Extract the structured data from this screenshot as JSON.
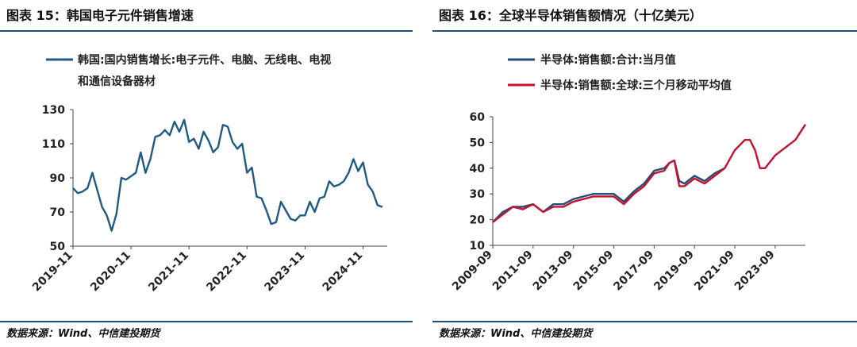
{
  "left": {
    "title": "图表 15：韩国电子元件销售增速",
    "source": "数据来源：Wind、中信建投期货",
    "chart_data": {
      "type": "line",
      "title": "",
      "ylim": [
        50,
        130
      ],
      "yticks": [
        50,
        70,
        90,
        110,
        130
      ],
      "xticks": [
        "2019-11",
        "2020-11",
        "2021-11",
        "2022-11",
        "2023-11",
        "2024-11"
      ],
      "xrange": [
        "2019-11",
        "2025-04"
      ],
      "grid": false,
      "legend_position": "top",
      "series": [
        {
          "name_lines": [
            "韩国:国内销售增长:电子元件、电脑、无线电、电视",
            "和通信设备器材"
          ],
          "color": "#1f5a82",
          "x": [
            "2019-11",
            "2019-12",
            "2020-01",
            "2020-02",
            "2020-03",
            "2020-04",
            "2020-05",
            "2020-06",
            "2020-07",
            "2020-08",
            "2020-09",
            "2020-10",
            "2020-11",
            "2020-12",
            "2021-01",
            "2021-02",
            "2021-03",
            "2021-04",
            "2021-05",
            "2021-06",
            "2021-07",
            "2021-08",
            "2021-09",
            "2021-10",
            "2021-11",
            "2021-12",
            "2022-01",
            "2022-02",
            "2022-03",
            "2022-04",
            "2022-05",
            "2022-06",
            "2022-07",
            "2022-08",
            "2022-09",
            "2022-10",
            "2022-11",
            "2022-12",
            "2023-01",
            "2023-02",
            "2023-03",
            "2023-04",
            "2023-05",
            "2023-06",
            "2023-07",
            "2023-08",
            "2023-09",
            "2023-10",
            "2023-11",
            "2023-12",
            "2024-01",
            "2024-02",
            "2024-03",
            "2024-04",
            "2024-05",
            "2024-06",
            "2024-07",
            "2024-08",
            "2024-09",
            "2024-10",
            "2024-11",
            "2024-12",
            "2025-01",
            "2025-02",
            "2025-03"
          ],
          "values": [
            84,
            81,
            82,
            84,
            93,
            83,
            73,
            68,
            59,
            69,
            90,
            89,
            91,
            93,
            105,
            93,
            101,
            114,
            115,
            118,
            115,
            123,
            117,
            124,
            111,
            113,
            107,
            117,
            112,
            105,
            108,
            121,
            120,
            111,
            107,
            110,
            93,
            96,
            79,
            78,
            71,
            63,
            64,
            76,
            71,
            66,
            65,
            68,
            68,
            76,
            70,
            78,
            79,
            88,
            85,
            86,
            88,
            93,
            101,
            94,
            99,
            86,
            82,
            74,
            73
          ]
        }
      ]
    }
  },
  "right": {
    "title": "图表 16：全球半导体销售额情况（十亿美元）",
    "source": "数据来源：Wind、中信建投期货",
    "chart_data": {
      "type": "line",
      "title": "",
      "ylim": [
        10,
        60
      ],
      "yticks": [
        10,
        20,
        30,
        40,
        50,
        60
      ],
      "xticks": [
        "2009-09",
        "2011-09",
        "2013-09",
        "2015-09",
        "2017-09",
        "2019-09",
        "2021-09",
        "2023-09"
      ],
      "xrange": [
        "2009-09",
        "2025-03"
      ],
      "grid": false,
      "legend_position": "top",
      "series": [
        {
          "name": "半导体:销售额:合计:当月值",
          "color": "#1f4e79",
          "x": [
            "2009-09",
            "2010-03",
            "2010-09",
            "2011-03",
            "2011-09",
            "2012-03",
            "2012-09",
            "2013-03",
            "2013-09",
            "2014-03",
            "2014-09",
            "2015-03",
            "2015-09",
            "2016-03",
            "2016-09",
            "2017-03",
            "2017-09",
            "2018-03",
            "2018-06",
            "2018-09",
            "2018-12",
            "2019-03",
            "2019-09",
            "2020-03",
            "2020-09",
            "2021-03"
          ],
          "values": [
            19,
            23,
            25,
            25,
            26,
            23,
            26,
            26,
            28,
            29,
            30,
            30,
            30,
            27,
            31,
            34,
            39,
            40,
            42,
            43,
            35,
            34,
            37,
            35,
            38,
            40
          ]
        },
        {
          "name": "半导体:销售额:全球:三个月移动平均值",
          "color": "#c8102e",
          "x": [
            "2009-09",
            "2010-03",
            "2010-09",
            "2011-03",
            "2011-09",
            "2012-03",
            "2012-09",
            "2013-03",
            "2013-09",
            "2014-03",
            "2014-09",
            "2015-03",
            "2015-09",
            "2016-03",
            "2016-09",
            "2017-03",
            "2017-09",
            "2018-03",
            "2018-06",
            "2018-09",
            "2018-12",
            "2019-03",
            "2019-09",
            "2020-03",
            "2020-09",
            "2021-03",
            "2021-09",
            "2022-03",
            "2022-06",
            "2022-09",
            "2022-12",
            "2023-03",
            "2023-09",
            "2024-03",
            "2024-09",
            "2025-03"
          ],
          "values": [
            19,
            22,
            25,
            24,
            26,
            23,
            25,
            25,
            27,
            28,
            29,
            29,
            29,
            26,
            30,
            33,
            38,
            39,
            42,
            43,
            33,
            33,
            36,
            34,
            37,
            40,
            47,
            51,
            51,
            47,
            40,
            40,
            45,
            48,
            51,
            57
          ]
        }
      ]
    }
  }
}
